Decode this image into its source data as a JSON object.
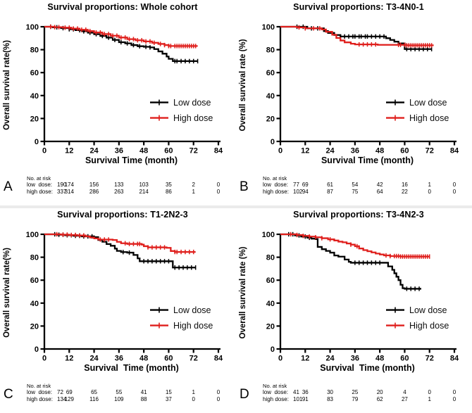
{
  "figure": {
    "background": "#ffffff",
    "divider_color": "#ebebeb",
    "axis_color": "#000000",
    "low_dose_color": "#000000",
    "high_dose_color": "#df1f1c",
    "x_ticks": [
      0,
      12,
      24,
      36,
      48,
      60,
      72,
      84
    ],
    "y_ticks": [
      0,
      20,
      40,
      60,
      80,
      100
    ]
  },
  "chart_data": [
    {
      "type": "line",
      "panel": "A",
      "title": "Survival proportions: Whole cohort",
      "xlabel": "Survival Time (month)",
      "ylabel": "Overall survival rate(%)",
      "xlim": [
        0,
        84
      ],
      "ylim": [
        0,
        100
      ],
      "x_ticks": [
        0,
        12,
        24,
        36,
        48,
        60,
        72,
        84
      ],
      "y_ticks": [
        0,
        20,
        40,
        60,
        80,
        100
      ],
      "legend_position": "center-right",
      "series": [
        {
          "name": "Low dose",
          "color": "#000000",
          "steps": [
            [
              0,
              100
            ],
            [
              4,
              99.5
            ],
            [
              8,
              98.8
            ],
            [
              12,
              97.8
            ],
            [
              15,
              97
            ],
            [
              18,
              96
            ],
            [
              21,
              94.8
            ],
            [
              24,
              93.5
            ],
            [
              27,
              92
            ],
            [
              30,
              90.5
            ],
            [
              33,
              88.5
            ],
            [
              36,
              86.5
            ],
            [
              39,
              85.5
            ],
            [
              42,
              84
            ],
            [
              45,
              83
            ],
            [
              48,
              82.5
            ],
            [
              51,
              82
            ],
            [
              53,
              80.5
            ],
            [
              55,
              78.5
            ],
            [
              57,
              76.5
            ],
            [
              59,
              74
            ],
            [
              60,
              72
            ],
            [
              62,
              70
            ],
            [
              74,
              70
            ]
          ],
          "censors": [
            3,
            6,
            9,
            12,
            14,
            17,
            19,
            22,
            25,
            28,
            31,
            34,
            37,
            40,
            43,
            46,
            49,
            51,
            63,
            64,
            66,
            68,
            70,
            72,
            74
          ]
        },
        {
          "name": "High dose",
          "color": "#df1f1c",
          "steps": [
            [
              0,
              100
            ],
            [
              5,
              99.6
            ],
            [
              9,
              99.2
            ],
            [
              13,
              98.4
            ],
            [
              17,
              97.4
            ],
            [
              21,
              96.2
            ],
            [
              24,
              95
            ],
            [
              28,
              93.6
            ],
            [
              32,
              92.2
            ],
            [
              36,
              90.6
            ],
            [
              40,
              89.2
            ],
            [
              44,
              88.2
            ],
            [
              48,
              87.2
            ],
            [
              52,
              86
            ],
            [
              55,
              85
            ],
            [
              58,
              84
            ],
            [
              60,
              83.2
            ],
            [
              74,
              83.2
            ]
          ],
          "censors": [
            3,
            5,
            7,
            10,
            12,
            14,
            16,
            18,
            20,
            22,
            25,
            27,
            29,
            31,
            33,
            35,
            37,
            39,
            41,
            43,
            45,
            47,
            49,
            51,
            53,
            56,
            58,
            60,
            61,
            63,
            64,
            65,
            66,
            67,
            68,
            69,
            70,
            71,
            72,
            73
          ]
        }
      ],
      "risk_table": {
        "header": "No. at risk",
        "rows": [
          {
            "label": "low  dose:",
            "counts": [
              190,
              174,
              156,
              133,
              103,
              35,
              2,
              0
            ]
          },
          {
            "label": "high dose:",
            "counts": [
              337,
              314,
              286,
              263,
              214,
              86,
              1,
              0
            ]
          }
        ]
      }
    },
    {
      "type": "line",
      "panel": "B",
      "title": "Survival proportions: T3-4N0-1",
      "xlabel": "Survival Time (month)",
      "ylabel": "Overall survival rate (%)",
      "xlim": [
        0,
        84
      ],
      "ylim": [
        0,
        100
      ],
      "x_ticks": [
        0,
        12,
        24,
        36,
        48,
        60,
        72,
        84
      ],
      "y_ticks": [
        0,
        20,
        40,
        60,
        80,
        100
      ],
      "legend_position": "center-right",
      "series": [
        {
          "name": "Low dose",
          "color": "#000000",
          "steps": [
            [
              0,
              100
            ],
            [
              13,
              98.6
            ],
            [
              21,
              96.2
            ],
            [
              23,
              94.6
            ],
            [
              26,
              92.8
            ],
            [
              29,
              91.5
            ],
            [
              51,
              90
            ],
            [
              53,
              88.5
            ],
            [
              55,
              87
            ],
            [
              57,
              85.5
            ],
            [
              60,
              80.5
            ],
            [
              73,
              80.5
            ]
          ],
          "censors": [
            8,
            11,
            15,
            18,
            31,
            33,
            35,
            36,
            38,
            39,
            41,
            42,
            44,
            46,
            48,
            50,
            61,
            63,
            65,
            67,
            69,
            71,
            73
          ]
        },
        {
          "name": "High dose",
          "color": "#df1f1c",
          "steps": [
            [
              0,
              100
            ],
            [
              8,
              99.4
            ],
            [
              12,
              98.6
            ],
            [
              20,
              97.6
            ],
            [
              22,
              95.6
            ],
            [
              25,
              93
            ],
            [
              27,
              90.2
            ],
            [
              29,
              88
            ],
            [
              31,
              86.4
            ],
            [
              34,
              85.2
            ],
            [
              36,
              84.6
            ],
            [
              47,
              84.2
            ],
            [
              60,
              84.2
            ],
            [
              61,
              83.8
            ],
            [
              74,
              83.8
            ]
          ],
          "censors": [
            9,
            12,
            16,
            19,
            38,
            40,
            42,
            44,
            46,
            57,
            58,
            60,
            61,
            62,
            63,
            64,
            65,
            66,
            67,
            68,
            69,
            70,
            71,
            72,
            73
          ]
        }
      ],
      "risk_table": {
        "header": "No. at risk",
        "rows": [
          {
            "label": "low  dose:",
            "counts": [
              77,
              69,
              61,
              54,
              42,
              16,
              1,
              0
            ]
          },
          {
            "label": "high dose:",
            "counts": [
              102,
              94,
              87,
              75,
              64,
              22,
              0,
              0
            ]
          }
        ]
      }
    },
    {
      "type": "line",
      "panel": "C",
      "title": "Survival proportions: T1-2N2-3",
      "xlabel": "Survival  Time (month)",
      "ylabel": "Overall survival rate(%)",
      "xlim": [
        0,
        84
      ],
      "ylim": [
        0,
        100
      ],
      "x_ticks": [
        0,
        12,
        24,
        36,
        48,
        60,
        72,
        84
      ],
      "y_ticks": [
        0,
        20,
        40,
        60,
        80,
        100
      ],
      "legend_position": "center-right",
      "series": [
        {
          "name": "Low dose",
          "color": "#000000",
          "steps": [
            [
              0,
              100
            ],
            [
              6,
              99.6
            ],
            [
              10,
              99.2
            ],
            [
              14,
              98.7
            ],
            [
              18,
              98.2
            ],
            [
              24,
              97.5
            ],
            [
              26,
              95
            ],
            [
              28,
              93.5
            ],
            [
              30,
              91.5
            ],
            [
              32,
              90
            ],
            [
              34,
              87.5
            ],
            [
              35,
              85.5
            ],
            [
              37,
              84.5
            ],
            [
              40,
              84
            ],
            [
              43,
              82
            ],
            [
              45,
              79
            ],
            [
              46,
              76.5
            ],
            [
              61,
              76.5
            ],
            [
              62,
              71
            ],
            [
              73,
              71
            ]
          ],
          "censors": [
            5,
            7,
            9,
            11,
            13,
            15,
            17,
            19,
            21,
            23,
            38,
            41,
            48,
            50,
            52,
            54,
            56,
            58,
            60,
            63,
            65,
            67,
            69,
            71,
            73
          ]
        },
        {
          "name": "High dose",
          "color": "#df1f1c",
          "steps": [
            [
              0,
              100
            ],
            [
              8,
              99.7
            ],
            [
              12,
              99.4
            ],
            [
              16,
              99
            ],
            [
              20,
              98.2
            ],
            [
              22,
              97.2
            ],
            [
              24,
              96.4
            ],
            [
              26,
              95.4
            ],
            [
              33,
              95
            ],
            [
              35,
              93.4
            ],
            [
              37,
              92.2
            ],
            [
              40,
              91.6
            ],
            [
              47,
              91
            ],
            [
              48,
              89.6
            ],
            [
              50,
              88.6
            ],
            [
              59,
              88.2
            ],
            [
              61,
              85.4
            ],
            [
              63,
              84.6
            ],
            [
              73,
              84.6
            ]
          ],
          "censors": [
            6,
            9,
            11,
            13,
            15,
            17,
            19,
            27,
            29,
            31,
            39,
            41,
            43,
            45,
            46,
            50,
            52,
            54,
            56,
            58,
            63,
            64,
            66,
            68,
            70,
            72
          ]
        }
      ],
      "risk_table": {
        "header": "No. at risk",
        "rows": [
          {
            "label": "low  dose:",
            "counts": [
              72,
              69,
              65,
              55,
              41,
              15,
              1,
              0
            ]
          },
          {
            "label": "high dose:",
            "counts": [
              134,
              129,
              116,
              109,
              88,
              37,
              0,
              0
            ]
          }
        ]
      }
    },
    {
      "type": "line",
      "panel": "D",
      "title": "Survival proportions: T3-4N2-3",
      "xlabel": "Survival  Time (month)",
      "ylabel": "Overall survival rate (%)",
      "xlim": [
        0,
        84
      ],
      "ylim": [
        0,
        100
      ],
      "x_ticks": [
        0,
        12,
        24,
        36,
        48,
        60,
        72,
        84
      ],
      "y_ticks": [
        0,
        20,
        40,
        60,
        80,
        100
      ],
      "legend_position": "center-right",
      "series": [
        {
          "name": "Low dose",
          "color": "#000000",
          "steps": [
            [
              0,
              100
            ],
            [
              7,
              99
            ],
            [
              10,
              98
            ],
            [
              13,
              97
            ],
            [
              15,
              96.2
            ],
            [
              17,
              95.8
            ],
            [
              18,
              89
            ],
            [
              20,
              87
            ],
            [
              22,
              85.5
            ],
            [
              24,
              84
            ],
            [
              26,
              81.5
            ],
            [
              28,
              80.5
            ],
            [
              31,
              78
            ],
            [
              33,
              76
            ],
            [
              34,
              75.2
            ],
            [
              50,
              75.2
            ],
            [
              52,
              72
            ],
            [
              54,
              69
            ],
            [
              55,
              66
            ],
            [
              56,
              63
            ],
            [
              57,
              60
            ],
            [
              58,
              56
            ],
            [
              59,
              53
            ],
            [
              60,
              52.5
            ],
            [
              68,
              52.5
            ]
          ],
          "censors": [
            4,
            6,
            9,
            12,
            14,
            36,
            38,
            40,
            42,
            44,
            46,
            48,
            61,
            63,
            65,
            67
          ]
        },
        {
          "name": "High dose",
          "color": "#df1f1c",
          "steps": [
            [
              0,
              100
            ],
            [
              8,
              99.4
            ],
            [
              11,
              98.6
            ],
            [
              14,
              98
            ],
            [
              17,
              97.4
            ],
            [
              20,
              96.6
            ],
            [
              23,
              95.6
            ],
            [
              26,
              94.6
            ],
            [
              28,
              93.6
            ],
            [
              30,
              93
            ],
            [
              32,
              92
            ],
            [
              34,
              91
            ],
            [
              36,
              89.6
            ],
            [
              38,
              87.6
            ],
            [
              40,
              86.2
            ],
            [
              42,
              85.2
            ],
            [
              44,
              84.2
            ],
            [
              46,
              83.2
            ],
            [
              48,
              82.4
            ],
            [
              50,
              81.6
            ],
            [
              53,
              81
            ],
            [
              58,
              80.6
            ],
            [
              72,
              80.6
            ]
          ],
          "censors": [
            5,
            8,
            11,
            14,
            17,
            20,
            24,
            34,
            37,
            51,
            53,
            55,
            56,
            57,
            58,
            59,
            60,
            61,
            62,
            63,
            64,
            65,
            66,
            67,
            68,
            69,
            70,
            71,
            72
          ]
        }
      ],
      "risk_table": {
        "header": "No. at risk",
        "rows": [
          {
            "label": "low  dose:",
            "counts": [
              41,
              36,
              30,
              25,
              20,
              4,
              0,
              0
            ]
          },
          {
            "label": "high dose:",
            "counts": [
              101,
              91,
              83,
              79,
              62,
              27,
              1,
              0
            ]
          }
        ]
      }
    }
  ]
}
